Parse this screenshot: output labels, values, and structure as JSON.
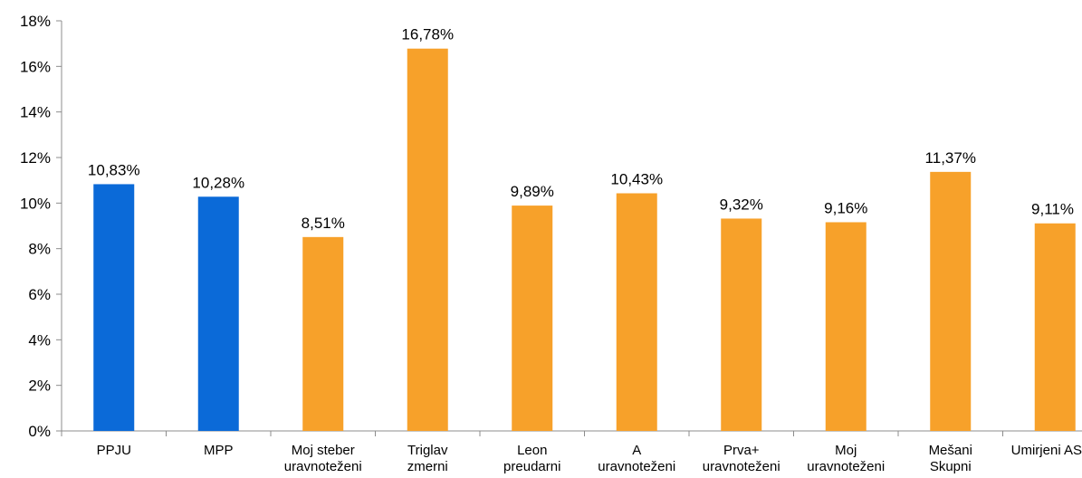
{
  "chart_data": {
    "type": "bar",
    "title": "",
    "xlabel": "",
    "ylabel": "",
    "ylim": [
      0,
      18
    ],
    "ytick_step": 2,
    "ytick_labels": [
      "0%",
      "2%",
      "4%",
      "6%",
      "8%",
      "10%",
      "12%",
      "14%",
      "16%",
      "18%"
    ],
    "grid": false,
    "legend": "none",
    "categories": [
      "PPJU",
      "MPP",
      "Moj steber uravnoteženi",
      "Triglav zmerni",
      "Leon preudarni",
      "A uravnoteženi",
      "Prva+ uravnoteženi",
      "Moj uravnoteženi",
      "Mešani Skupni",
      "Umirjeni AS"
    ],
    "category_lines": [
      [
        "PPJU"
      ],
      [
        "MPP"
      ],
      [
        "Moj steber",
        "uravnoteženi"
      ],
      [
        "Triglav",
        "zmerni"
      ],
      [
        "Leon",
        "preudarni"
      ],
      [
        "A",
        "uravnoteženi"
      ],
      [
        "Prva+",
        "uravnoteženi"
      ],
      [
        "Moj",
        "uravnoteženi"
      ],
      [
        "Mešani",
        "Skupni"
      ],
      [
        "Umirjeni AS"
      ]
    ],
    "values": [
      10.83,
      10.28,
      8.51,
      16.78,
      9.89,
      10.43,
      9.32,
      9.16,
      11.37,
      9.11
    ],
    "data_labels": [
      "10,83%",
      "10,28%",
      "8,51%",
      "16,78%",
      "9,89%",
      "10,43%",
      "9,32%",
      "9,16%",
      "11,37%",
      "9,11%"
    ],
    "colors": [
      "#0b6ad8",
      "#0b6ad8",
      "#f7a12a",
      "#f7a12a",
      "#f7a12a",
      "#f7a12a",
      "#f7a12a",
      "#f7a12a",
      "#f7a12a",
      "#f7a12a"
    ],
    "axis_color": "#8c8c8c"
  }
}
